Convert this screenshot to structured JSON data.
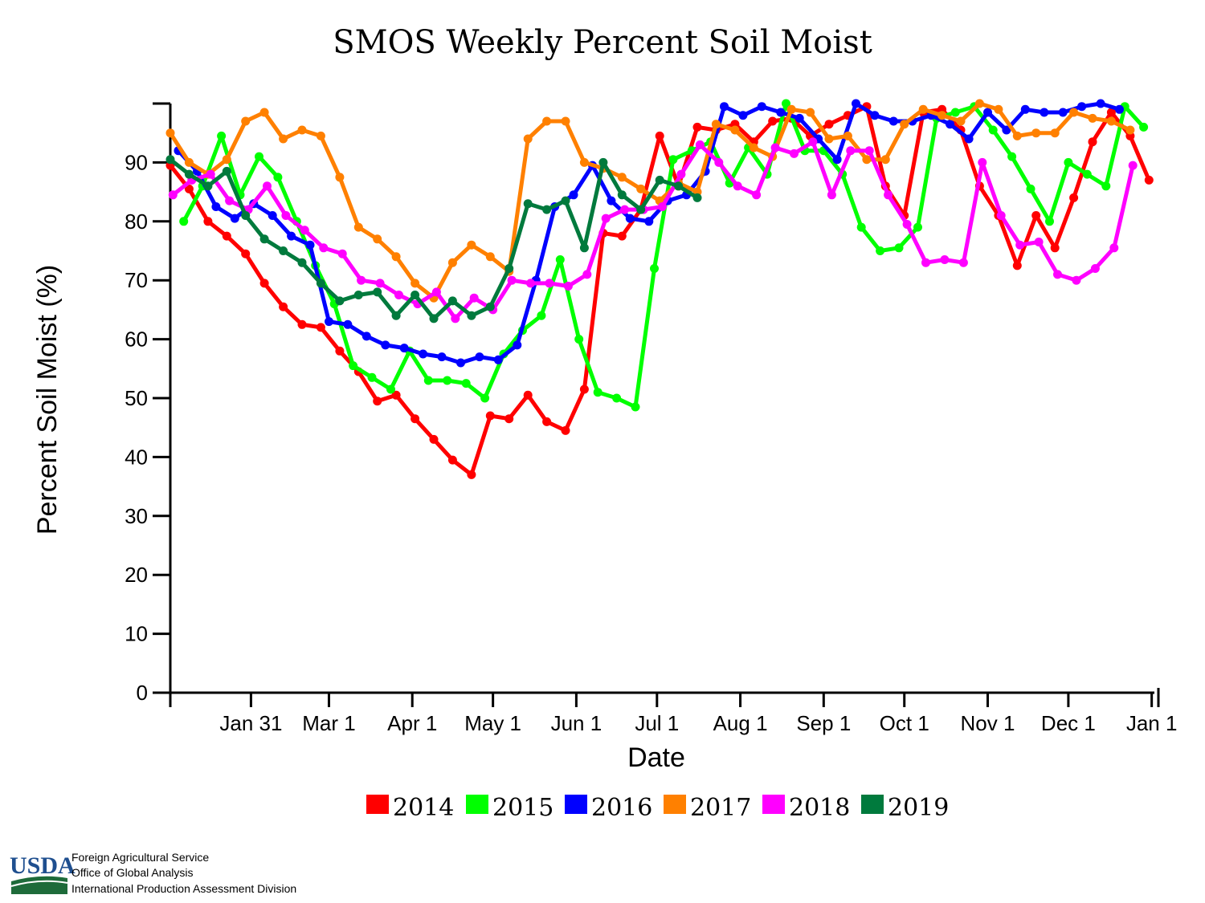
{
  "chart_data": {
    "type": "line",
    "title": "SMOS Weekly Percent Soil Moist",
    "xlabel": "Date",
    "ylabel": "Percent Soil Moist (%)",
    "ylim": [
      0,
      100
    ],
    "yticks": [
      0,
      10,
      20,
      30,
      40,
      50,
      60,
      70,
      80,
      90
    ],
    "xlim_day": [
      0,
      366
    ],
    "xticks": [
      {
        "label": "Jan 31",
        "day": 30
      },
      {
        "label": "Mar 1",
        "day": 59
      },
      {
        "label": "Apr 1",
        "day": 90
      },
      {
        "label": "May 1",
        "day": 120
      },
      {
        "label": "Jun 1",
        "day": 151
      },
      {
        "label": "Jul 1",
        "day": 181
      },
      {
        "label": "Aug 1",
        "day": 212
      },
      {
        "label": "Sep 1",
        "day": 243
      },
      {
        "label": "Oct 1",
        "day": 273
      },
      {
        "label": "Nov 1",
        "day": 304
      },
      {
        "label": "Dec 1",
        "day": 334
      },
      {
        "label": "Jan 1",
        "day": 365
      }
    ],
    "legend_position": "bottom-center",
    "series": [
      {
        "name": "2014",
        "color": "#ff0000",
        "start_day": 0,
        "values": [
          89.5,
          85.5,
          80,
          77.5,
          74.5,
          69.5,
          65.5,
          62.5,
          62,
          58,
          54.5,
          49.5,
          50.5,
          46.5,
          43,
          39.5,
          37,
          47,
          46.5,
          50.5,
          46,
          44.5,
          51.5,
          78,
          77.5,
          82,
          94.5,
          86,
          96,
          95.5,
          96.5,
          93.5,
          97,
          97.5,
          94.5,
          96.5,
          98,
          99.5,
          86,
          81,
          98.5,
          99,
          95.5,
          86,
          81,
          72.5,
          81,
          75.5,
          84,
          93.5,
          98.5,
          94.5,
          87
        ]
      },
      {
        "name": "2015",
        "color": "#00ff00",
        "start_day": 5,
        "values": [
          80,
          86,
          94.5,
          84.5,
          91,
          87.5,
          80,
          72.5,
          66,
          55.5,
          53.5,
          51.5,
          58,
          53,
          53,
          52.5,
          50,
          57.5,
          61.5,
          64,
          73.5,
          60,
          51,
          50,
          48.5,
          72,
          90.5,
          92,
          93.5,
          86.5,
          92.5,
          88,
          100,
          92,
          92,
          88,
          79,
          75,
          75.5,
          79,
          97.5,
          98.5,
          99.5,
          95.5,
          91,
          85.5,
          80,
          90,
          88,
          86,
          99.5,
          96
        ]
      },
      {
        "name": "2016",
        "color": "#0000ff",
        "start_day": 3,
        "values": [
          92,
          88.5,
          82.5,
          80.5,
          83,
          81,
          77.5,
          76,
          63,
          62.5,
          60.5,
          59,
          58.5,
          57.5,
          57,
          56,
          57,
          56.5,
          59,
          70,
          82.5,
          84.5,
          89.5,
          83.5,
          80.5,
          80,
          83.5,
          84.5,
          88.5,
          99.5,
          98,
          99.5,
          98.5,
          97.5,
          94,
          90.5,
          100,
          98,
          97,
          97,
          98,
          96.5,
          94,
          98.5,
          95.5,
          99,
          98.5,
          98.5,
          99.5,
          100,
          99
        ]
      },
      {
        "name": "2017",
        "color": "#ff8000",
        "start_day": 0,
        "values": [
          95,
          90,
          88,
          90.5,
          97,
          98.5,
          94,
          95.5,
          94.5,
          87.5,
          79,
          77,
          74,
          69.5,
          67,
          73,
          76,
          74,
          71.5,
          94,
          97,
          97,
          90,
          89,
          87.5,
          85.5,
          83.5,
          86.5,
          85,
          96.5,
          95.5,
          92.5,
          91,
          99,
          98.5,
          94,
          94.5,
          90.5,
          90.5,
          96.5,
          99,
          98,
          97,
          100,
          99,
          94.5,
          95,
          95,
          98.5,
          97.5,
          97,
          95.5
        ]
      },
      {
        "name": "2018",
        "color": "#ff00ff",
        "start_day": 1,
        "values": [
          84.5,
          87,
          88,
          83.5,
          82,
          86,
          81,
          78.5,
          75.5,
          74.5,
          70,
          69.5,
          67.5,
          66,
          68,
          63.5,
          67,
          65,
          70,
          69.5,
          69.5,
          69,
          71,
          80.5,
          82,
          82,
          82.5,
          88,
          93,
          90,
          86,
          84.5,
          92.5,
          91.5,
          93.5,
          84.5,
          92,
          92,
          84.5,
          79.5,
          73,
          73.5,
          73,
          90,
          81,
          76,
          76.5,
          71,
          70,
          72,
          75.5,
          89.5
        ]
      },
      {
        "name": "2019",
        "color": "#007a3d",
        "start_day": 0,
        "values": [
          90.5,
          88,
          86,
          88.5,
          81,
          77,
          75,
          73,
          69.5,
          66.5,
          67.5,
          68,
          64,
          67.5,
          63.5,
          66.5,
          64,
          65.5,
          72,
          83,
          82,
          83.5,
          75.5,
          90,
          84.5,
          82,
          87,
          86,
          84
        ]
      }
    ]
  },
  "logo": {
    "word": "USDA",
    "lines": [
      "Foreign Agricultural Service",
      "Office of Global Analysis",
      "International Production Assessment Division"
    ]
  }
}
